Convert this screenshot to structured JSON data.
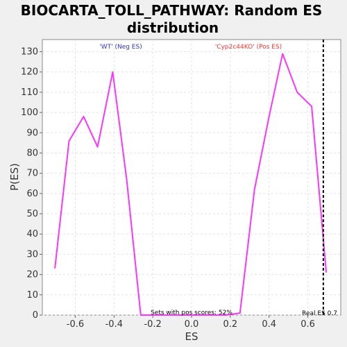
{
  "chart_data": {
    "type": "line",
    "title_line1": "BIOCARTA_TOLL_PATHWAY: Random ES",
    "title_line2": "distribution",
    "xlabel": "ES",
    "ylabel": "P(ES)",
    "xlim": [
      -0.77,
      0.77
    ],
    "ylim": [
      0,
      136
    ],
    "x_ticks": [
      -0.6,
      -0.4,
      -0.2,
      0.0,
      0.2,
      0.4,
      0.6
    ],
    "x_tick_labels": [
      "-0.6",
      "-0.4",
      "-0.2",
      "0.0",
      "0.2",
      "0.4",
      "0.6"
    ],
    "y_ticks": [
      0,
      10,
      20,
      30,
      40,
      50,
      60,
      70,
      80,
      90,
      100,
      110,
      120,
      130
    ],
    "y_tick_labels": [
      "0",
      "10",
      "20",
      "30",
      "40",
      "50",
      "60",
      "70",
      "80",
      "90",
      "100",
      "110",
      "120",
      "130"
    ],
    "grid": true,
    "series": [
      {
        "color": "#ff33ff",
        "x": [
          -0.705,
          -0.632,
          -0.557,
          -0.485,
          -0.407,
          -0.335,
          -0.262,
          -0.19,
          -0.115,
          -0.043,
          0.03,
          0.105,
          0.178,
          0.25,
          0.325,
          0.398,
          0.47,
          0.545,
          0.62,
          0.695
        ],
        "y": [
          23,
          86,
          98,
          83,
          120,
          67,
          0,
          0,
          0,
          0,
          0,
          0,
          0,
          1,
          62,
          97,
          129,
          110,
          103,
          21
        ]
      }
    ],
    "real_es": 0.68,
    "annotations": {
      "neg_label": "'WT' (Neg ES)",
      "neg_color": "#3333cc",
      "pos_label": "'Cyp2c44KO' (Pos ES)",
      "pos_color": "#ff3333",
      "pos_scores": "Sets with pos scores: 52%",
      "real_es_label": "Real ES 0.7"
    }
  }
}
